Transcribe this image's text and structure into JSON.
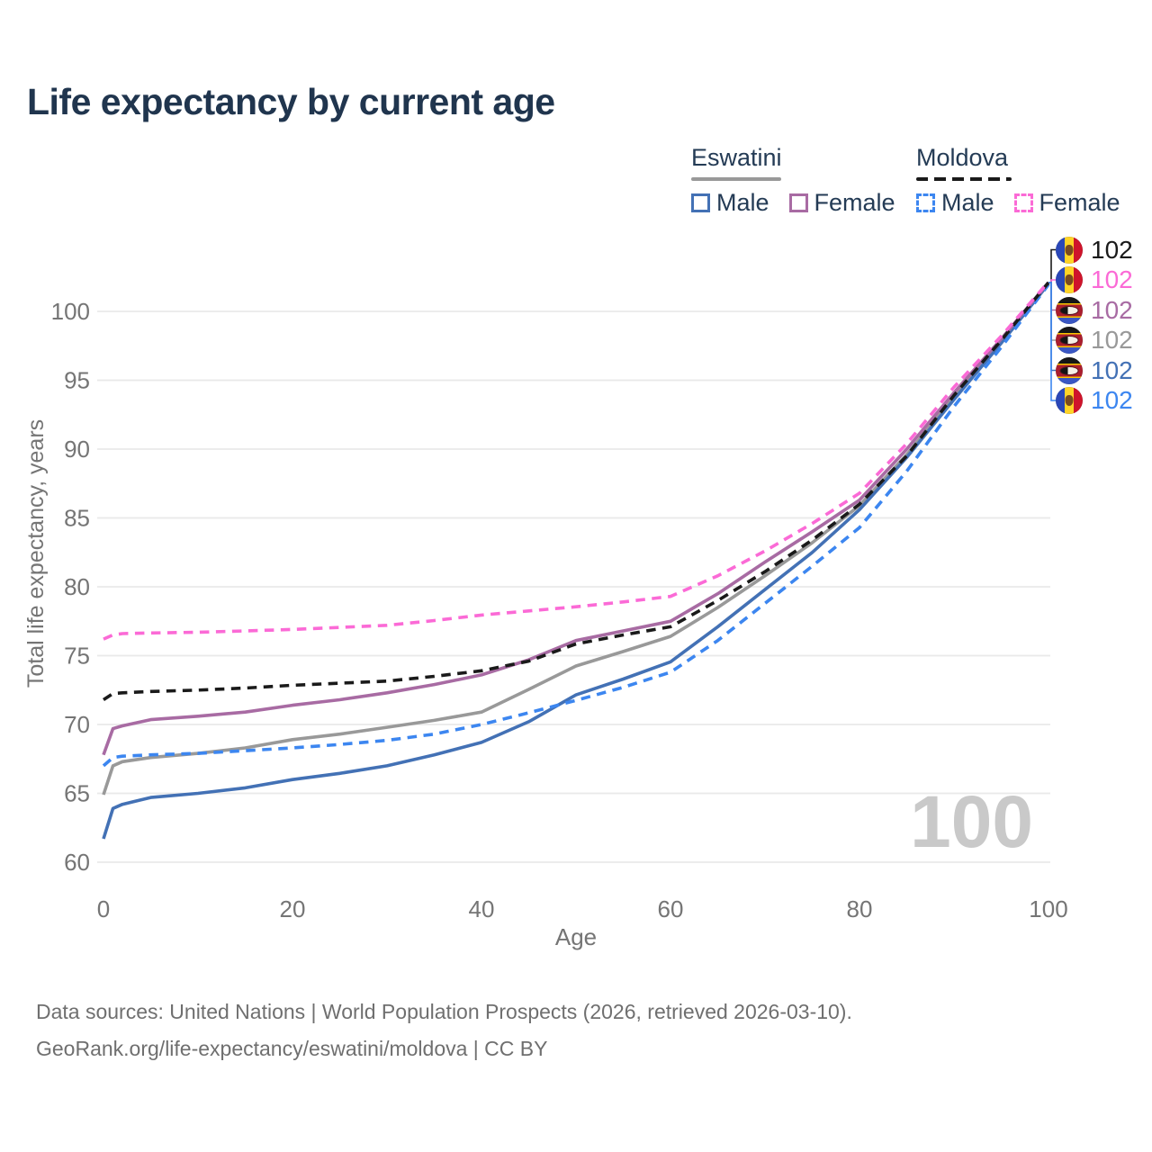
{
  "title": "Life expectancy by current age",
  "colors": {
    "title": "#20354e",
    "axis_text": "#757575",
    "grid": "#e9e9e9",
    "watermark": "#c9c9c9",
    "footer_text": "#6f6f6f",
    "legend_text": "#243b55",
    "eswatini_male": "#4371b5",
    "eswatini_female": "#a86ba3",
    "eswatini_total": "#999999",
    "moldova_male": "#3c86f0",
    "moldova_female": "#fb6ad6",
    "moldova_total": "#1a1a1a"
  },
  "legend": {
    "groups": [
      {
        "label": "Eswatini",
        "style": "solid",
        "items": [
          {
            "label": "Male"
          },
          {
            "label": "Female"
          }
        ]
      },
      {
        "label": "Moldova",
        "style": "dashed",
        "items": [
          {
            "label": "Male"
          },
          {
            "label": "Female"
          }
        ]
      }
    ]
  },
  "chart_data": {
    "type": "line",
    "title": "Life expectancy by current age",
    "xlabel": "Age",
    "ylabel": "Total life expectancy, years",
    "xlim": [
      0,
      100
    ],
    "ylim": [
      60,
      100
    ],
    "xticks": [
      0,
      20,
      40,
      60,
      80,
      100
    ],
    "yticks": [
      60,
      65,
      70,
      75,
      80,
      85,
      90,
      95,
      100
    ],
    "grid": "horizontal-only",
    "x": [
      0,
      1,
      2,
      5,
      10,
      15,
      20,
      25,
      30,
      35,
      40,
      45,
      50,
      55,
      60,
      65,
      70,
      75,
      80,
      85,
      90,
      95,
      100
    ],
    "series": [
      {
        "name": "Moldova",
        "country": "Moldova",
        "sex": "Total",
        "dash": true,
        "color_key": "moldova_total",
        "end_label": "102",
        "values": [
          71.8,
          72.25,
          72.3,
          72.4,
          72.5,
          72.65,
          72.85,
          73.0,
          73.15,
          73.5,
          73.9,
          74.6,
          75.85,
          76.5,
          77.1,
          79.0,
          81.1,
          83.4,
          86.0,
          89.5,
          93.9,
          97.9,
          102.1
        ]
      },
      {
        "name": "Moldova Female",
        "country": "Moldova",
        "sex": "Female",
        "dash": true,
        "color_key": "moldova_female",
        "end_label": "102",
        "values": [
          76.2,
          76.5,
          76.6,
          76.65,
          76.7,
          76.8,
          76.9,
          77.05,
          77.2,
          77.55,
          77.95,
          78.25,
          78.55,
          78.9,
          79.3,
          80.8,
          82.6,
          84.6,
          86.8,
          90.4,
          94.5,
          98.2,
          102.15
        ]
      },
      {
        "name": "Eswatini Female",
        "country": "Eswatini",
        "sex": "Female",
        "dash": false,
        "color_key": "eswatini_female",
        "end_label": "102",
        "values": [
          67.8,
          69.7,
          69.9,
          70.35,
          70.6,
          70.9,
          71.4,
          71.8,
          72.3,
          72.9,
          73.6,
          74.7,
          76.1,
          76.8,
          77.5,
          79.5,
          81.8,
          84.0,
          86.3,
          90.0,
          94.1,
          98.0,
          102.1
        ]
      },
      {
        "name": "Eswatini",
        "country": "Eswatini",
        "sex": "Total",
        "dash": false,
        "color_key": "eswatini_total",
        "end_label": "102",
        "values": [
          64.9,
          67.0,
          67.3,
          67.6,
          67.9,
          68.3,
          68.9,
          69.3,
          69.8,
          70.3,
          70.9,
          72.55,
          74.25,
          75.3,
          76.4,
          78.5,
          80.8,
          83.2,
          85.9,
          89.6,
          93.8,
          97.8,
          102.05
        ]
      },
      {
        "name": "Eswatini Male",
        "country": "Eswatini",
        "sex": "Male",
        "dash": false,
        "color_key": "eswatini_male",
        "end_label": "102",
        "values": [
          61.7,
          63.9,
          64.2,
          64.7,
          65.0,
          65.4,
          66.0,
          66.45,
          67.0,
          67.8,
          68.7,
          70.2,
          72.15,
          73.3,
          74.55,
          77.1,
          79.8,
          82.5,
          85.6,
          89.4,
          93.6,
          97.7,
          102.0
        ]
      },
      {
        "name": "Moldova Male",
        "country": "Moldova",
        "sex": "Male",
        "dash": true,
        "color_key": "moldova_male",
        "end_label": "102",
        "values": [
          67.0,
          67.6,
          67.7,
          67.8,
          67.9,
          68.1,
          68.3,
          68.55,
          68.85,
          69.3,
          70.0,
          70.85,
          71.75,
          72.7,
          73.8,
          76.1,
          78.8,
          81.5,
          84.3,
          88.4,
          93.1,
          97.4,
          101.95
        ]
      }
    ],
    "legend_position": "top-right",
    "annotations": {
      "age_indicator_watermark": "100"
    }
  },
  "end_labels": [
    {
      "flag": "moldova",
      "color_key": "moldova_total",
      "value": "102"
    },
    {
      "flag": "moldova",
      "color_key": "moldova_female",
      "value": "102"
    },
    {
      "flag": "eswatini",
      "color_key": "eswatini_female",
      "value": "102"
    },
    {
      "flag": "eswatini",
      "color_key": "eswatini_total",
      "value": "102"
    },
    {
      "flag": "eswatini",
      "color_key": "eswatini_male",
      "value": "102"
    },
    {
      "flag": "moldova",
      "color_key": "moldova_male",
      "value": "102"
    }
  ],
  "watermark": "100",
  "footer": {
    "line1": "Data sources: United Nations | World Population Prospects (2026, retrieved 2026-03-10).",
    "line2": "GeoRank.org/life-expectancy/eswatini/moldova | CC BY"
  }
}
